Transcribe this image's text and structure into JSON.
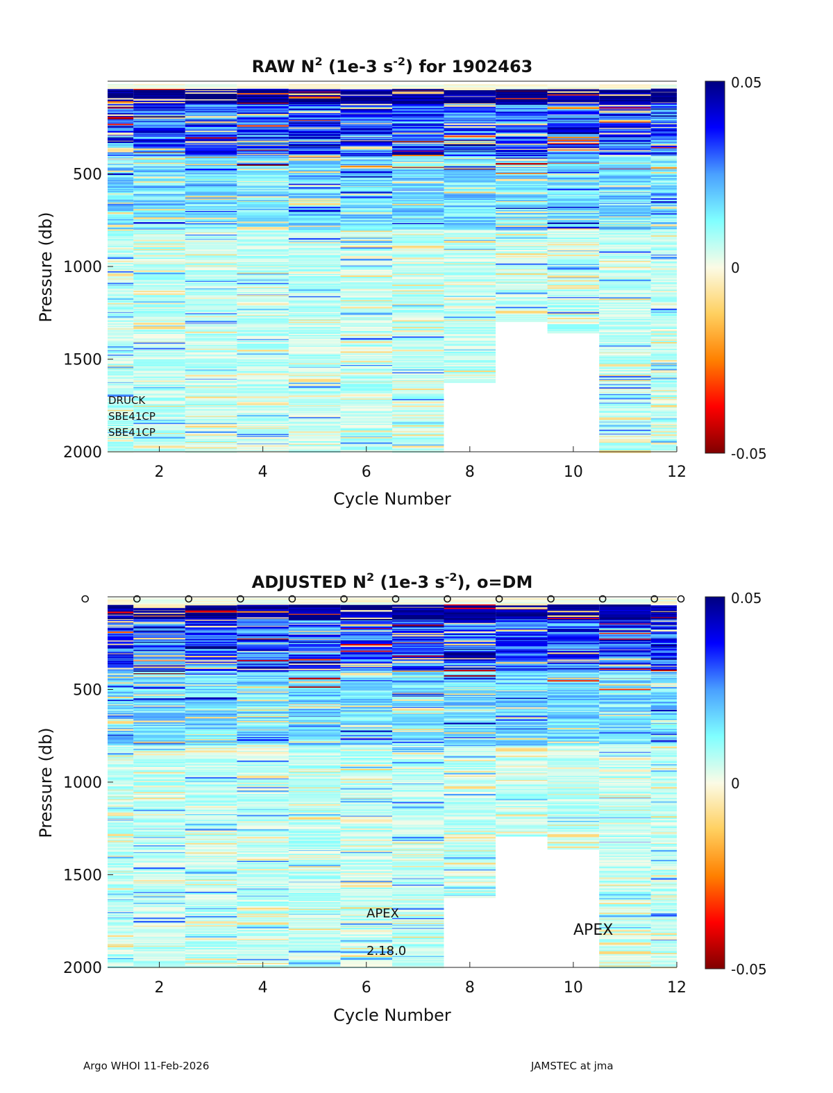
{
  "chart_data": [
    {
      "type": "heatmap",
      "title": "RAW N² (1e-3 s⁻²) for 1902463",
      "title_parts": {
        "pre": "RAW N",
        "sup1": "2",
        "mid": " (1e-3 s",
        "sup2": "-2",
        "post": ") for 1902463"
      },
      "xlabel": "Cycle Number",
      "ylabel": "Pressure (db)",
      "xlim": [
        1,
        12
      ],
      "ylim": [
        2000,
        0
      ],
      "xticks": [
        2,
        4,
        6,
        8,
        10,
        12
      ],
      "yticks": [
        500,
        1000,
        1500,
        2000
      ],
      "cycles": [
        1,
        2,
        3,
        4,
        5,
        6,
        7,
        8,
        9,
        10,
        11,
        12
      ],
      "max_pressure": [
        2000,
        2000,
        2000,
        2000,
        2000,
        2000,
        2000,
        1620,
        1290,
        1360,
        2000,
        2000
      ],
      "surface_band_db": [
        0,
        0,
        0,
        0,
        0,
        0,
        0,
        0,
        0,
        0,
        0,
        0
      ],
      "colorbar": {
        "min": -0.05,
        "max": 0.05,
        "ticks": [
          "0.05",
          "0",
          "-0.05"
        ]
      },
      "annotations": [
        "DRUCK",
        "SBE41CP",
        "SBE41CP"
      ],
      "dm_markers": false
    },
    {
      "type": "heatmap",
      "title": "ADJUSTED N² (1e-3 s⁻²), o=DM",
      "title_parts": {
        "pre": "ADJUSTED N",
        "sup1": "2",
        "mid": " (1e-3 s",
        "sup2": "-2",
        "post": "), o=DM"
      },
      "xlabel": "Cycle Number",
      "ylabel": "Pressure (db)",
      "xlim": [
        1,
        12
      ],
      "ylim": [
        2000,
        0
      ],
      "xticks": [
        2,
        4,
        6,
        8,
        10,
        12
      ],
      "yticks": [
        500,
        1000,
        1500,
        2000
      ],
      "cycles": [
        1,
        2,
        3,
        4,
        5,
        6,
        7,
        8,
        9,
        10,
        11,
        12
      ],
      "max_pressure": [
        2000,
        2000,
        2000,
        2000,
        2000,
        2000,
        2000,
        1620,
        1290,
        1360,
        2000,
        2000
      ],
      "colorbar": {
        "min": -0.05,
        "max": 0.05,
        "ticks": [
          "0.05",
          "0",
          "-0.05"
        ]
      },
      "annotations": [
        "APEX",
        "2.18.0",
        "APEX"
      ],
      "dm_markers": true,
      "dm_cycles": [
        1,
        2,
        3,
        4,
        5,
        6,
        7,
        8,
        9,
        10,
        11,
        12,
        13
      ],
      "dm_symbol": "o"
    }
  ],
  "footer": {
    "left": "Argo WHOI 11-Feb-2026",
    "right": "JAMSTEC at jma"
  }
}
